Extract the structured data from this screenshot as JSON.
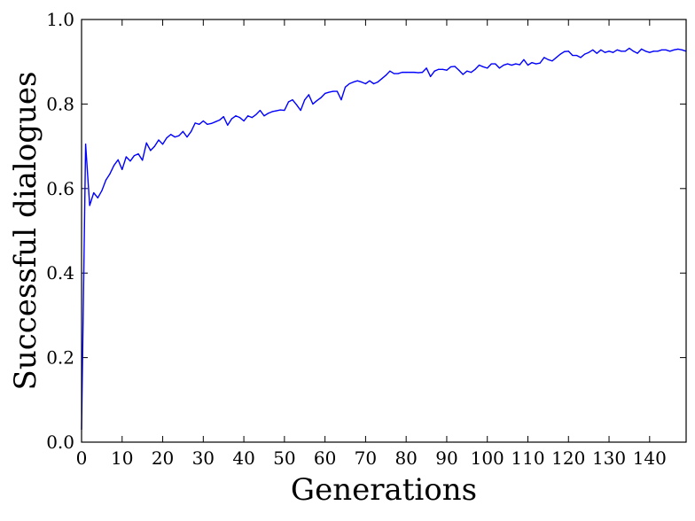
{
  "chart_data": {
    "type": "line",
    "title": "",
    "xlabel": "Generations",
    "ylabel": "Successful dialogues",
    "xlim": [
      0,
      149
    ],
    "ylim": [
      0.0,
      1.0
    ],
    "xticks": [
      0,
      10,
      20,
      30,
      40,
      50,
      60,
      70,
      80,
      90,
      100,
      110,
      120,
      130,
      140
    ],
    "xtick_labels": [
      "0",
      "10",
      "20",
      "30",
      "40",
      "50",
      "60",
      "70",
      "80",
      "90",
      "100",
      "110",
      "120",
      "130",
      "140"
    ],
    "yticks": [
      0.0,
      0.2,
      0.4,
      0.6,
      0.8,
      1.0
    ],
    "ytick_labels": [
      "0.0",
      "0.2",
      "0.4",
      "0.6",
      "0.8",
      "1.0"
    ],
    "grid": false,
    "legend": "none",
    "colors": {
      "line": "#0000ff",
      "axes": "#000000",
      "background": "#ffffff"
    },
    "series": [
      {
        "x": [
          0,
          1,
          2,
          3,
          4,
          5,
          6,
          7,
          8,
          9,
          10,
          11,
          12,
          13,
          14,
          15,
          16,
          17,
          18,
          19,
          20,
          21,
          22,
          23,
          24,
          25,
          26,
          27,
          28,
          29,
          30,
          31,
          32,
          33,
          34,
          35,
          36,
          37,
          38,
          39,
          40,
          41,
          42,
          43,
          44,
          45,
          46,
          47,
          48,
          49,
          50,
          51,
          52,
          53,
          54,
          55,
          56,
          57,
          58,
          59,
          60,
          61,
          62,
          63,
          64,
          65,
          66,
          67,
          68,
          69,
          70,
          71,
          72,
          73,
          74,
          75,
          76,
          77,
          78,
          79,
          80,
          81,
          82,
          83,
          84,
          85,
          86,
          87,
          88,
          89,
          90,
          91,
          92,
          93,
          94,
          95,
          96,
          97,
          98,
          99,
          100,
          101,
          102,
          103,
          104,
          105,
          106,
          107,
          108,
          109,
          110,
          111,
          112,
          113,
          114,
          115,
          116,
          117,
          118,
          119,
          120,
          121,
          122,
          123,
          124,
          125,
          126,
          127,
          128,
          129,
          130,
          131,
          132,
          133,
          134,
          135,
          136,
          137,
          138,
          139,
          140,
          141,
          142,
          143,
          144,
          145,
          146,
          147,
          148,
          149
        ],
        "y": [
          0.03,
          0.705,
          0.56,
          0.59,
          0.578,
          0.595,
          0.62,
          0.635,
          0.655,
          0.668,
          0.645,
          0.675,
          0.665,
          0.678,
          0.682,
          0.667,
          0.708,
          0.69,
          0.7,
          0.715,
          0.705,
          0.72,
          0.728,
          0.722,
          0.725,
          0.735,
          0.722,
          0.735,
          0.755,
          0.752,
          0.76,
          0.752,
          0.754,
          0.758,
          0.762,
          0.77,
          0.75,
          0.765,
          0.772,
          0.768,
          0.76,
          0.772,
          0.768,
          0.775,
          0.785,
          0.772,
          0.778,
          0.782,
          0.784,
          0.786,
          0.785,
          0.805,
          0.81,
          0.798,
          0.785,
          0.81,
          0.822,
          0.8,
          0.808,
          0.815,
          0.825,
          0.828,
          0.83,
          0.83,
          0.81,
          0.84,
          0.848,
          0.852,
          0.855,
          0.852,
          0.848,
          0.855,
          0.848,
          0.852,
          0.86,
          0.868,
          0.878,
          0.872,
          0.872,
          0.875,
          0.875,
          0.875,
          0.875,
          0.874,
          0.875,
          0.885,
          0.865,
          0.878,
          0.882,
          0.882,
          0.88,
          0.888,
          0.889,
          0.88,
          0.87,
          0.878,
          0.875,
          0.882,
          0.892,
          0.888,
          0.885,
          0.895,
          0.895,
          0.885,
          0.892,
          0.895,
          0.892,
          0.895,
          0.893,
          0.905,
          0.892,
          0.898,
          0.895,
          0.897,
          0.91,
          0.905,
          0.902,
          0.91,
          0.918,
          0.924,
          0.925,
          0.915,
          0.915,
          0.91,
          0.918,
          0.922,
          0.928,
          0.92,
          0.928,
          0.922,
          0.925,
          0.922,
          0.928,
          0.925,
          0.925,
          0.932,
          0.925,
          0.92,
          0.93,
          0.925,
          0.922,
          0.925,
          0.925,
          0.928,
          0.928,
          0.925,
          0.928,
          0.93,
          0.928,
          0.925
        ]
      }
    ]
  }
}
